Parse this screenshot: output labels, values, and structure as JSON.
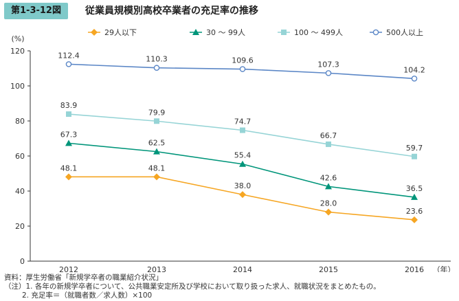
{
  "figure": {
    "number": "第1-3-12図",
    "title": "従業員規模別高校卒業者の充足率の推移"
  },
  "notes": {
    "source": "資料：厚生労働省「新規学卒者の職業紹介状況」",
    "note1": "（注）1. 各年の新規学卒者について、公共職業安定所及び学校において取り扱った求人、就職状況をまとめたもの。",
    "note2": "2. 充足率＝（就職者数／求人数）×100"
  },
  "chart_data": {
    "type": "line",
    "ylabel": "(%)",
    "xlabel": "（年）",
    "ylim": [
      0,
      120
    ],
    "yticks": [
      0,
      20,
      40,
      60,
      80,
      100,
      120
    ],
    "categories": [
      "2012",
      "2013",
      "2014",
      "2015",
      "2016"
    ],
    "legend_position": "top",
    "grid": false,
    "series": [
      {
        "name": "29人以下",
        "marker": "diamond",
        "color": "#f6a623",
        "values": [
          48.1,
          48.1,
          38.0,
          28.0,
          23.6
        ],
        "labels": [
          "48.1",
          "48.1",
          "38.0",
          "28.0",
          "23.6"
        ]
      },
      {
        "name": "30 ～ 99人",
        "marker": "triangle",
        "color": "#00957a",
        "values": [
          67.3,
          62.5,
          55.4,
          42.6,
          36.5
        ],
        "labels": [
          "67.3",
          "62.5",
          "55.4",
          "42.6",
          "36.5"
        ]
      },
      {
        "name": "100 ～ 499人",
        "marker": "square",
        "color": "#96d4d6",
        "values": [
          83.9,
          79.9,
          74.7,
          66.7,
          59.7
        ],
        "labels": [
          "83.9",
          "79.9",
          "74.7",
          "66.7",
          "59.7"
        ]
      },
      {
        "name": "500人以上",
        "marker": "circle",
        "color": "#5a86c6",
        "values": [
          112.4,
          110.3,
          109.6,
          107.3,
          104.2
        ],
        "labels": [
          "112.4",
          "110.3",
          "109.6",
          "107.3",
          "104.2"
        ]
      }
    ]
  }
}
